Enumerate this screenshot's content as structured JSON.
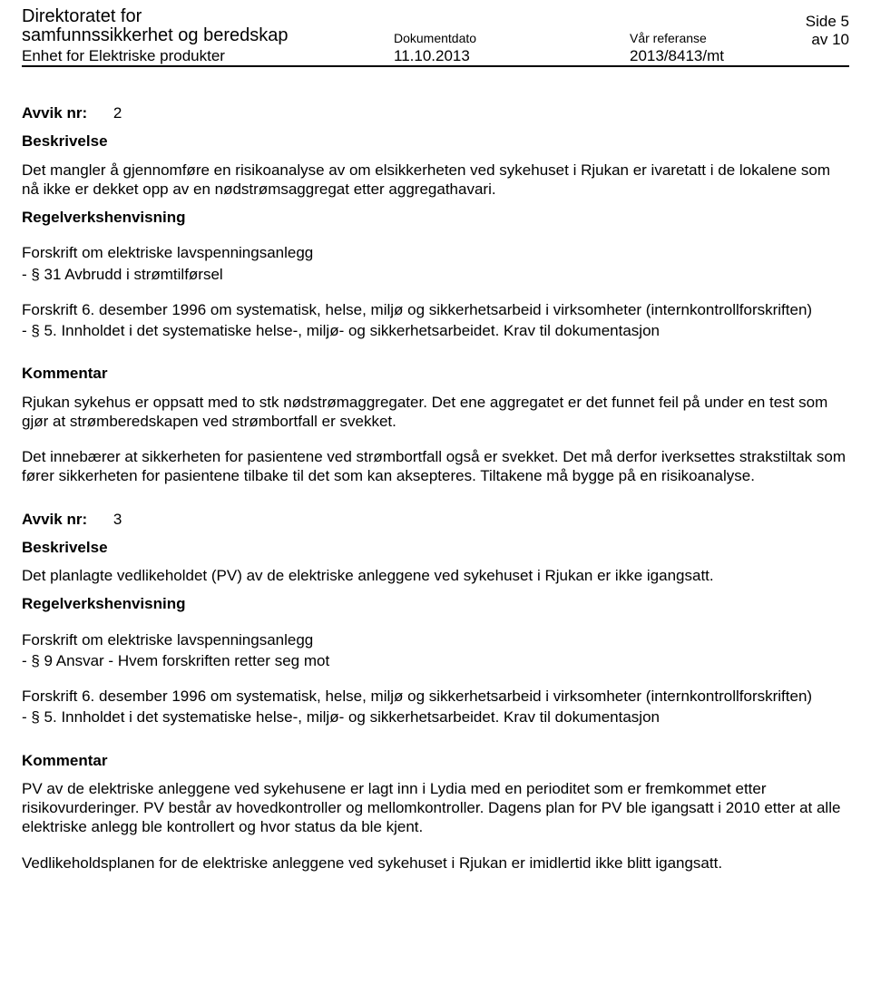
{
  "header": {
    "agency_line1": "Direktoratet for",
    "agency_line2": "samfunnssikkerhet og beredskap",
    "unit": "Enhet for Elektriske produkter",
    "date_label": "Dokumentdato",
    "date_value": "11.10.2013",
    "ref_label": "Vår referanse",
    "ref_value": "2013/8413/mt",
    "page": "Side 5 av 10"
  },
  "avvik2": {
    "label": "Avvik nr:",
    "number": "2",
    "beskrivelse_label": "Beskrivelse",
    "beskrivelse_text": "Det mangler å gjennomføre en risikoanalyse av om elsikkerheten ved sykehuset i Rjukan er ivaretatt i de lokalene som nå ikke er dekket opp av en nødstrømsaggregat etter aggregathavari.",
    "regelverk_label": "Regelverkshenvisning",
    "ref1_line1": "Forskrift om elektriske lavspenningsanlegg",
    "ref1_line2": "- § 31 Avbrudd i strømtilførsel",
    "ref2": "Forskrift 6. desember 1996 om systematisk, helse, miljø og sikkerhetsarbeid i virksomheter (internkontrollforskriften)",
    "ref2_line3": "- § 5. Innholdet i det systematiske helse-, miljø- og sikkerhetsarbeidet. Krav til dokumentasjon",
    "kommentar_label": "Kommentar",
    "kommentar_p1": "Rjukan sykehus er oppsatt med to stk nødstrømaggregater. Det ene aggregatet er det funnet feil på under en test som gjør at strømberedskapen ved strømbortfall er svekket.",
    "kommentar_p2": "Det innebærer at sikkerheten for pasientene ved strømbortfall også er svekket. Det må derfor iverksettes strakstiltak som fører sikkerheten for pasientene tilbake til det som kan aksepteres. Tiltakene må bygge på en risikoanalyse."
  },
  "avvik3": {
    "label": "Avvik nr:",
    "number": "3",
    "beskrivelse_label": "Beskrivelse",
    "beskrivelse_text": "Det planlagte vedlikeholdet (PV) av de elektriske anleggene ved sykehuset i Rjukan er ikke igangsatt.",
    "regelverk_label": "Regelverkshenvisning",
    "ref1_line1": "Forskrift om elektriske lavspenningsanlegg",
    "ref1_line2": "- § 9 Ansvar - Hvem forskriften retter seg mot",
    "ref2": "Forskrift 6. desember 1996 om systematisk, helse, miljø og sikkerhetsarbeid i virksomheter (internkontrollforskriften)",
    "ref2_line3": "- § 5. Innholdet i det systematiske helse-, miljø- og sikkerhetsarbeidet. Krav til dokumentasjon",
    "kommentar_label": "Kommentar",
    "kommentar_p1": "PV av de elektriske anleggene ved sykehusene er lagt inn i Lydia med en perioditet som er fremkommet etter risikovurderinger. PV består av hovedkontroller og mellomkontroller. Dagens plan for PV ble igangsatt i 2010 etter at alle elektriske anlegg ble kontrollert og hvor status da ble kjent.",
    "kommentar_p2": "Vedlikeholdsplanen for de elektriske anleggene ved sykehuset i Rjukan er imidlertid ikke blitt igangsatt."
  }
}
